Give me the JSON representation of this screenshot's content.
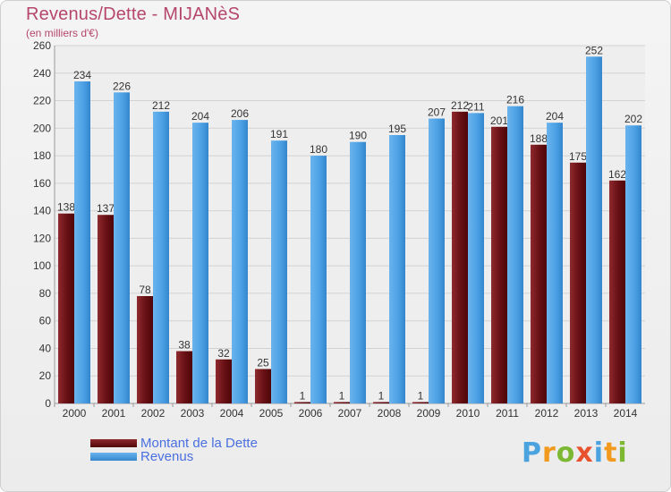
{
  "chart_data": {
    "type": "bar",
    "title": "Revenus/Dette - MIJANèS",
    "subtitle": "(en milliers d'€)",
    "categories": [
      "2000",
      "2001",
      "2002",
      "2003",
      "2004",
      "2005",
      "2006",
      "2007",
      "2008",
      "2009",
      "2010",
      "2011",
      "2012",
      "2013",
      "2014"
    ],
    "series": [
      {
        "name": "Montant de la Dette",
        "color": "#6b0f14",
        "values": [
          138,
          137,
          78,
          38,
          32,
          25,
          1,
          1,
          1,
          1,
          212,
          201,
          188,
          175,
          162
        ]
      },
      {
        "name": "Revenus",
        "color": "#4a9fe3",
        "values": [
          234,
          226,
          212,
          204,
          206,
          191,
          180,
          190,
          195,
          207,
          211,
          216,
          204,
          252,
          202
        ]
      }
    ],
    "yticks": [
      0,
      20,
      40,
      60,
      80,
      100,
      120,
      140,
      160,
      180,
      200,
      220,
      240,
      260
    ],
    "ylim": [
      0,
      260
    ],
    "grid": true,
    "legend_position": "bottom-left"
  },
  "brand": {
    "logo_letters": [
      "P",
      "r",
      "o",
      "x",
      "i",
      "t",
      "i"
    ],
    "logo_colors": [
      "#4aa3df",
      "#f29a1e",
      "#7cb832",
      "#e8522f",
      "#4aa3df",
      "#f29a1e",
      "#7cb832"
    ]
  }
}
